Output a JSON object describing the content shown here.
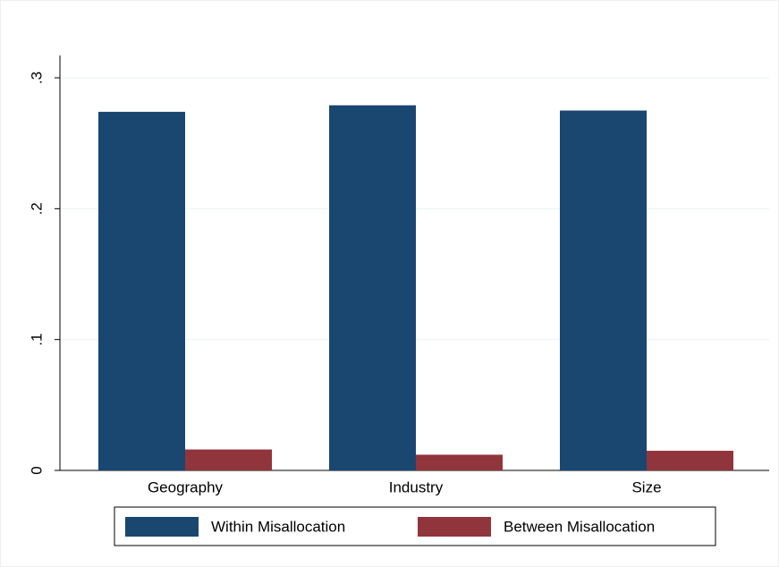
{
  "chart_data": {
    "type": "bar",
    "categories": [
      "Geography",
      "Industry",
      "Size"
    ],
    "series": [
      {
        "name": "Within Misallocation",
        "color": "#1a476f",
        "values": [
          0.274,
          0.279,
          0.275
        ]
      },
      {
        "name": "Between Misallocation",
        "color": "#90353b",
        "values": [
          0.016,
          0.012,
          0.015
        ]
      }
    ],
    "ylim": [
      0,
      0.3
    ],
    "yticks": [
      0,
      {
        "value": 0.1,
        "label": ".1"
      },
      {
        "value": 0.2,
        "label": ".2"
      },
      {
        "value": 0.3,
        "label": ".3"
      }
    ],
    "grid": true,
    "legend": "bottom"
  }
}
